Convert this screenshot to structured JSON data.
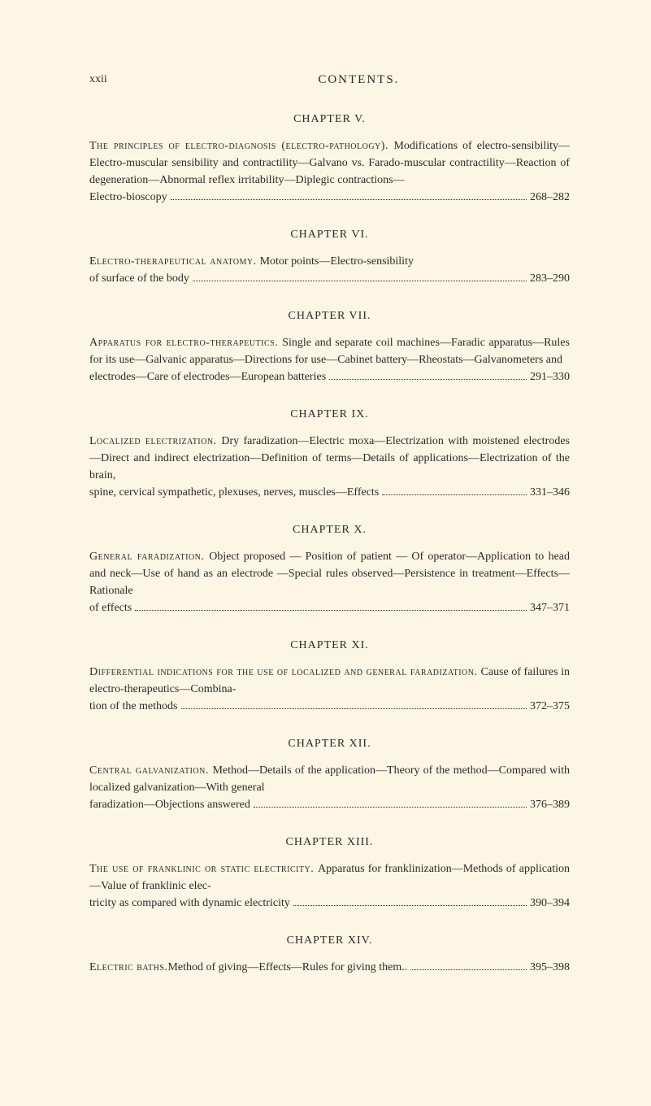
{
  "page_number": "xxii",
  "header_title": "CONTENTS.",
  "background_color": "#fdf6e4",
  "text_color": "#2a2a2a",
  "font_family": "Georgia, Times New Roman, serif",
  "chapters": [
    {
      "title": "CHAPTER V.",
      "topic": "The principles of electro-diagnosis (electro-pathology).",
      "body_before_last": "Modifications of electro-sensibility—Electro-muscular sensibility and contractility—Galvano vs. Farado-muscular contractility—Reaction of degeneration—Abnormal reflex irritability—Diplegic contractions—",
      "last_line_text": "Electro-bioscopy",
      "page_range": "268–282"
    },
    {
      "title": "CHAPTER VI.",
      "topic": "Electro-therapeutical anatomy.",
      "body_before_last": "Motor points—Electro-sensibility",
      "last_line_text": "of surface of the body",
      "page_range": "283–290"
    },
    {
      "title": "CHAPTER VII.",
      "topic": "Apparatus for electro-therapeutics.",
      "body_before_last": "Single and separate coil machines—Faradic apparatus—Rules for its use—Galvanic apparatus—Directions for use—Cabinet battery—Rheostats—Galvanometers and",
      "last_line_text": "electrodes—Care of electrodes—European batteries",
      "page_range": "291–330"
    },
    {
      "title": "CHAPTER IX.",
      "topic": "Localized electrization.",
      "body_before_last": "Dry faradization—Electric moxa—Electrization with moistened electrodes—Direct and indirect electrization—Definition of terms—Details of applications—Electrization of the brain,",
      "last_line_text": "spine, cervical sympathetic, plexuses, nerves, muscles—Effects",
      "page_range": "331–346"
    },
    {
      "title": "CHAPTER X.",
      "topic": "General faradization.",
      "body_before_last": "Object proposed — Position of patient — Of operator—Application to head and neck—Use of hand as an electrode —Special rules observed—Persistence in treatment—Effects—Rationale",
      "last_line_text": "of effects",
      "page_range": "347–371"
    },
    {
      "title": "CHAPTER XI.",
      "topic": "Differential indications for the use of localized and general faradization.",
      "body_before_last": "Cause of failures in electro-therapeutics—Combina-",
      "last_line_text": "tion of the methods",
      "page_range": "372–375"
    },
    {
      "title": "CHAPTER XII.",
      "topic": "Central galvanization.",
      "body_before_last": "Method—Details of the application—Theory of the method—Compared with localized galvanization—With general",
      "last_line_text": "faradization—Objections answered",
      "page_range": "376–389"
    },
    {
      "title": "CHAPTER XIII.",
      "topic": "The use of franklinic or static electricity.",
      "body_before_last": "Apparatus for franklinization—Methods of application—Value of franklinic elec-",
      "last_line_text": "tricity as compared with dynamic electricity",
      "page_range": "390–394"
    },
    {
      "title": "CHAPTER XIV.",
      "topic": "Electric baths.",
      "body_before_last": "",
      "last_line_text": "Method of giving—Effects—Rules for giving them..",
      "page_range": "395–398"
    }
  ]
}
